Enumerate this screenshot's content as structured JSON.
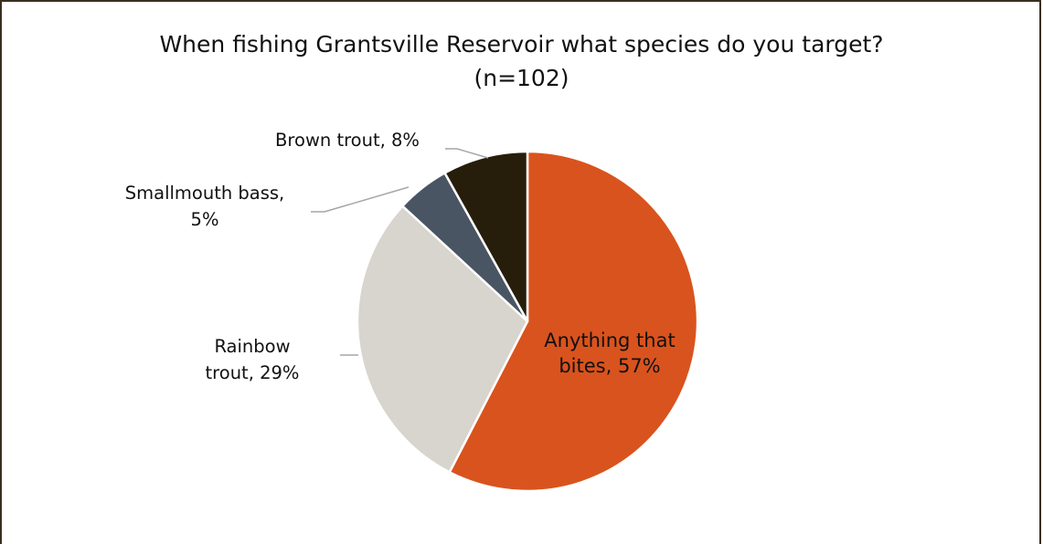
{
  "chart_data": {
    "type": "pie",
    "title": "When fishing Grantsville Reservoir what species do you target?",
    "subtitle": "(n=102)",
    "slices": [
      {
        "label": "Anything that bites",
        "value": 57,
        "color": "#d9531e"
      },
      {
        "label": "Rainbow trout",
        "value": 29,
        "color": "#d8d4ce"
      },
      {
        "label": "Smallmouth bass",
        "value": 5,
        "color": "#4a5563"
      },
      {
        "label": "Brown trout",
        "value": 8,
        "color": "#261e0b"
      }
    ],
    "data_labels": [
      {
        "lines": [
          "Anything that",
          "bites, 57%"
        ]
      },
      {
        "lines": [
          "Rainbow",
          "trout, 29%"
        ]
      },
      {
        "lines": [
          "Smallmouth bass,",
          "5%"
        ]
      },
      {
        "lines": [
          "Brown trout, 8%"
        ]
      }
    ]
  }
}
